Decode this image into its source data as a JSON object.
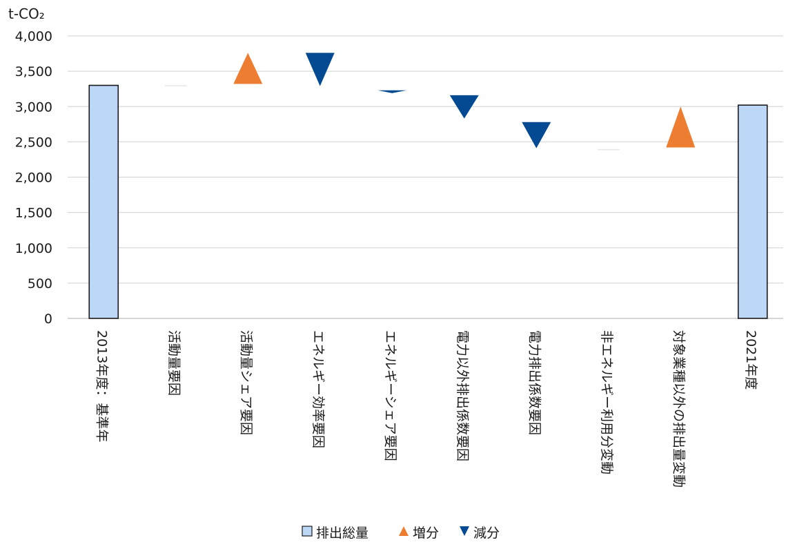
{
  "chart_data": {
    "type": "waterfall",
    "unit_label": "t-CO₂",
    "ylim": [
      0,
      4000
    ],
    "y_ticks": [
      "0",
      "500",
      "1,000",
      "1,500",
      "2,000",
      "2,500",
      "3,000",
      "3,500",
      "4,000"
    ],
    "grid": true,
    "legend_placement": "bottom",
    "categories": [
      "2013年度：基準年",
      "活動量要因",
      "活動量シェア要因",
      "エネルギー効率要因",
      "エネルギーシェア要因",
      "電力以外排出係数要因",
      "電力排出係数要因",
      "非エネルギー利用分変動",
      "対象業種以外の排出量変動",
      "2021年度"
    ],
    "series": [
      {
        "name": "排出総量",
        "marker": "bar",
        "color": "#bdd7f7",
        "values": [
          3300,
          null,
          null,
          null,
          null,
          null,
          null,
          null,
          null,
          3020
        ]
      },
      {
        "name": "増分",
        "marker": "triangle-up",
        "color": "#ed7d31",
        "values": [
          null,
          null,
          3320,
          null,
          null,
          null,
          null,
          null,
          2420,
          null
        ],
        "tops": [
          null,
          null,
          3760,
          null,
          null,
          null,
          null,
          null,
          3000,
          null
        ]
      },
      {
        "name": "減分",
        "marker": "triangle-down",
        "color": "#034a92",
        "values": [
          null,
          null,
          null,
          3760,
          3230,
          3160,
          2780,
          null,
          null,
          null
        ],
        "bottoms": [
          null,
          null,
          null,
          3290,
          3190,
          2830,
          2410,
          null,
          null,
          null
        ]
      }
    ],
    "flat_markers": [
      {
        "index": 1,
        "value": 3295
      },
      {
        "index": 7,
        "value": 2390
      }
    ]
  },
  "legend": [
    {
      "name": "排出総量",
      "marker": "square"
    },
    {
      "name": "増分",
      "marker": "triangle-up"
    },
    {
      "name": "減分",
      "marker": "triangle-down"
    }
  ]
}
